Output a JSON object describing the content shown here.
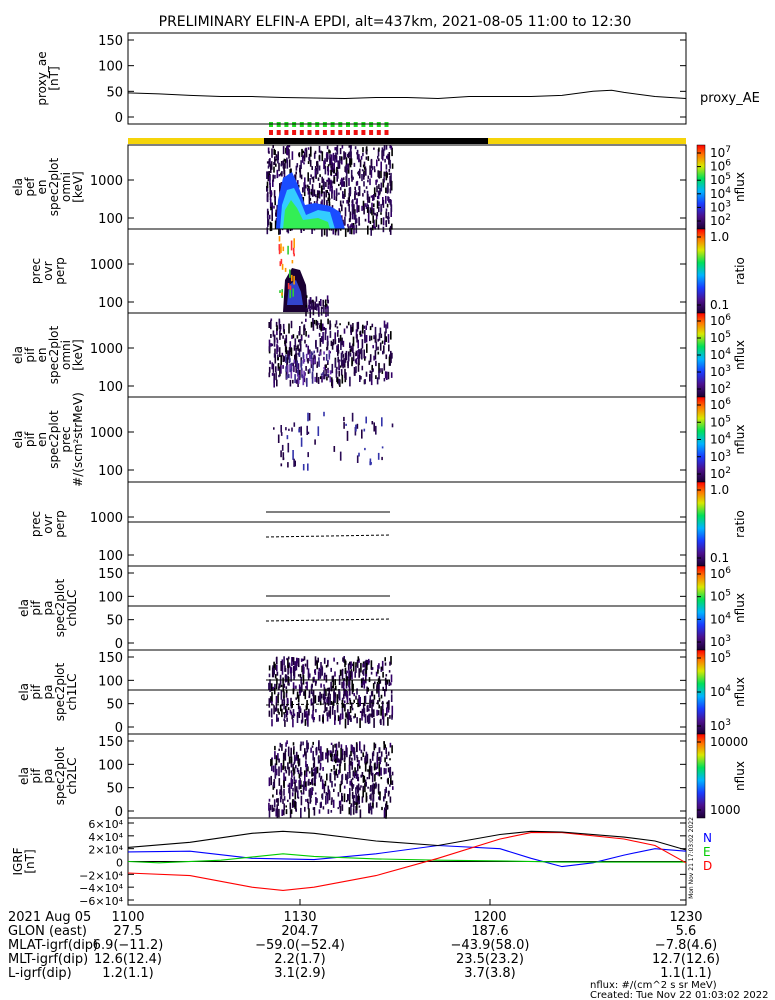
{
  "title": "PRELIMINARY ELFIN-A EPDI, alt=437km, 2021-08-05 11:00 to 12:30",
  "panels": [
    {
      "id": "ae",
      "ylabel": [
        "proxy_ae",
        "[nT]"
      ],
      "ticks": [
        "150",
        "100",
        "50",
        "0"
      ],
      "right_label": "proxy_AE"
    },
    {
      "id": "p1",
      "ylabel": [
        "ela",
        "pef",
        "en",
        "spec2plot",
        "omni",
        "[keV]"
      ],
      "ticks": [
        "1000",
        "100"
      ],
      "colorbar": {
        "labels": [
          "10",
          "10",
          "10",
          "10",
          "10",
          "10"
        ],
        "sups": [
          "7",
          "6",
          "5",
          "4",
          "3",
          "2"
        ],
        "unit": "nflux"
      }
    },
    {
      "id": "p2",
      "ylabel": [
        "prec",
        "ovr",
        "perp"
      ],
      "ticks": [
        "1000",
        "100"
      ],
      "colorbar": {
        "labels": [
          "1.0",
          "0.1"
        ],
        "sups": [
          "",
          ""
        ],
        "unit": "ratio"
      }
    },
    {
      "id": "p3",
      "ylabel": [
        "ela",
        "pif",
        "en",
        "spec2plot",
        "omni",
        "[keV]"
      ],
      "ticks": [
        "1000",
        "100"
      ],
      "colorbar": {
        "labels": [
          "10",
          "10",
          "10",
          "10",
          "10"
        ],
        "sups": [
          "6",
          "5",
          "4",
          "3",
          "2"
        ],
        "unit": "nflux"
      }
    },
    {
      "id": "p4",
      "ylabel": [
        "ela",
        "pif",
        "en",
        "spec2plot",
        "prec",
        "#/(scm²strMeV)"
      ],
      "ticks": [
        "1000",
        "100"
      ],
      "colorbar": {
        "labels": [
          "10",
          "10",
          "10",
          "10",
          "10"
        ],
        "sups": [
          "6",
          "5",
          "4",
          "3",
          "2"
        ],
        "unit": "nflux"
      }
    },
    {
      "id": "p5",
      "ylabel": [
        "prec",
        "ovr",
        "perp"
      ],
      "ticks": [
        "1000",
        "100"
      ],
      "colorbar": {
        "labels": [
          "1.0",
          "0.1"
        ],
        "sups": [
          "",
          ""
        ],
        "unit": "ratio"
      }
    },
    {
      "id": "p6",
      "ylabel": [
        "ela",
        "pif",
        "pa",
        "spec2plot",
        "ch0LC"
      ],
      "ticks": [
        "150",
        "100",
        "50",
        "0"
      ],
      "colorbar": {
        "labels": [
          "10",
          "10",
          "10",
          "10"
        ],
        "sups": [
          "6",
          "5",
          "4",
          "3"
        ],
        "unit": "nflux"
      }
    },
    {
      "id": "p7",
      "ylabel": [
        "ela",
        "pif",
        "pa",
        "spec2plot",
        "ch1LC"
      ],
      "ticks": [
        "150",
        "100",
        "50",
        "0"
      ],
      "colorbar": {
        "labels": [
          "10",
          "10",
          "10"
        ],
        "sups": [
          "5",
          "4",
          "3"
        ],
        "unit": "nflux"
      }
    },
    {
      "id": "p8",
      "ylabel": [
        "ela",
        "pif",
        "pa",
        "spec2plot",
        "ch2LC"
      ],
      "ticks": [
        "150",
        "100",
        "50",
        "0"
      ],
      "colorbar": {
        "labels": [
          "10000",
          "1000"
        ],
        "sups": [
          "",
          ""
        ],
        "unit": "nflux"
      }
    },
    {
      "id": "igrf",
      "ylabel": [
        "IGRF",
        "[nT]"
      ],
      "ticks": [
        "6×10⁴",
        "4×10⁴",
        "2×10⁴",
        "0",
        "−2×10⁴",
        "−4×10⁴",
        "−6×10⁴"
      ],
      "legend": [
        {
          "t": "N",
          "c": "#0000ff"
        },
        {
          "t": "E",
          "c": "#00cc00"
        },
        {
          "t": "D",
          "c": "#ff0000"
        }
      ]
    }
  ],
  "footer": {
    "date": "2021 Aug 05",
    "times": [
      "1100",
      "1130",
      "1200",
      "1230"
    ],
    "rows": [
      {
        "label": "GLON (east)",
        "vals": [
          "27.5",
          "204.7",
          "187.6",
          "5.6"
        ]
      },
      {
        "label": "MLAT-igrf(dip)",
        "vals": [
          "6.9(−11.2)",
          "−59.0(−52.4)",
          "−43.9(58.0)",
          "−7.8(4.6)"
        ]
      },
      {
        "label": "MLT-igrf(dip)",
        "vals": [
          "12.6(12.4)",
          "2.2(1.7)",
          "23.5(23.2)",
          "12.7(12.6)"
        ]
      },
      {
        "label": "L-igrf(dip)",
        "vals": [
          "1.2(1.1)",
          "3.1(2.9)",
          "3.7(3.8)",
          "1.1(1.1)"
        ]
      }
    ],
    "note1": "nflux: #/(cm^2 s sr MeV)",
    "note2": "Created: Tue Nov 22 01:03:02 2022",
    "stamp": "Mon Nov 21 17:03:02 2022"
  },
  "chart_data": {
    "type": "line",
    "x_range": [
      "11:00",
      "12:30"
    ],
    "x_ticks": [
      "1100",
      "1130",
      "1200",
      "1230"
    ],
    "proxy_ae": {
      "ylim": [
        0,
        150
      ],
      "points": [
        [
          0,
          47
        ],
        [
          5,
          45
        ],
        [
          10,
          42
        ],
        [
          15,
          40
        ],
        [
          20,
          40
        ],
        [
          25,
          38
        ],
        [
          30,
          37
        ],
        [
          35,
          36
        ],
        [
          40,
          38
        ],
        [
          45,
          38
        ],
        [
          50,
          36
        ],
        [
          55,
          40
        ],
        [
          60,
          40
        ],
        [
          65,
          40
        ],
        [
          70,
          42
        ],
        [
          75,
          50
        ],
        [
          78,
          52
        ],
        [
          80,
          48
        ],
        [
          85,
          40
        ],
        [
          90,
          36
        ]
      ]
    },
    "igrf": {
      "ylim": [
        -60000,
        60000
      ],
      "series": [
        {
          "name": "N",
          "color": "#0000ff",
          "values": [
            [
              0,
              15000
            ],
            [
              10,
              16000
            ],
            [
              20,
              5000
            ],
            [
              30,
              3000
            ],
            [
              40,
              12000
            ],
            [
              50,
              25000
            ],
            [
              60,
              20000
            ],
            [
              65,
              5000
            ],
            [
              70,
              -8000
            ],
            [
              75,
              -2000
            ],
            [
              80,
              10000
            ],
            [
              85,
              20000
            ],
            [
              90,
              16000
            ]
          ]
        },
        {
          "name": "E",
          "color": "#00cc00",
          "values": [
            [
              0,
              0
            ],
            [
              5,
              -2000
            ],
            [
              15,
              2000
            ],
            [
              25,
              12000
            ],
            [
              30,
              8000
            ],
            [
              40,
              4000
            ],
            [
              50,
              2000
            ],
            [
              60,
              1000
            ],
            [
              70,
              -1000
            ],
            [
              80,
              -1000
            ],
            [
              90,
              -1000
            ]
          ]
        },
        {
          "name": "D",
          "color": "#ff0000",
          "values": [
            [
              0,
              -18000
            ],
            [
              10,
              -22000
            ],
            [
              20,
              -40000
            ],
            [
              25,
              -45000
            ],
            [
              30,
              -40000
            ],
            [
              40,
              -22000
            ],
            [
              50,
              5000
            ],
            [
              60,
              35000
            ],
            [
              65,
              45000
            ],
            [
              70,
              45000
            ],
            [
              80,
              35000
            ],
            [
              85,
              25000
            ],
            [
              90,
              -2000
            ]
          ]
        },
        {
          "name": "total",
          "color": "#000000",
          "values": [
            [
              0,
              22000
            ],
            [
              10,
              30000
            ],
            [
              20,
              44000
            ],
            [
              25,
              47000
            ],
            [
              30,
              44000
            ],
            [
              40,
              32000
            ],
            [
              50,
              25000
            ],
            [
              60,
              42000
            ],
            [
              65,
              47000
            ],
            [
              70,
              46000
            ],
            [
              80,
              38000
            ],
            [
              85,
              32000
            ],
            [
              90,
              18000
            ]
          ]
        }
      ]
    }
  }
}
